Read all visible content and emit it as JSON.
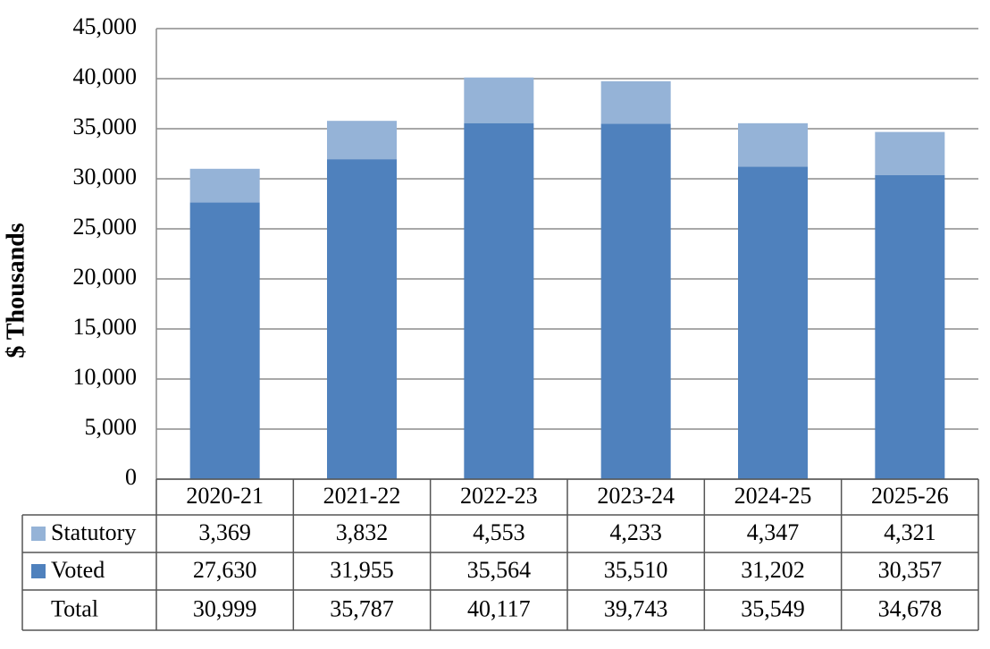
{
  "chart_data": {
    "type": "stacked-bar",
    "y_label": "$ Thousands",
    "categories": [
      "2020-21",
      "2021-22",
      "2022-23",
      "2023-24",
      "2024-25",
      "2025-26"
    ],
    "series": [
      {
        "name": "Statutory",
        "color": "#95b3d7",
        "values": [
          3369,
          3832,
          4553,
          4233,
          4347,
          4321
        ],
        "value_labels": [
          "3,369",
          "3,832",
          "4,553",
          "4,233",
          "4,347",
          "4,321"
        ]
      },
      {
        "name": "Voted",
        "color": "#4f81bd",
        "values": [
          27630,
          31955,
          35564,
          35510,
          31202,
          30357
        ],
        "value_labels": [
          "27,630",
          "31,955",
          "35,564",
          "35,510",
          "31,202",
          "30,357"
        ]
      }
    ],
    "totals": {
      "name": "Total",
      "values": [
        30999,
        35787,
        40117,
        39743,
        35549,
        34678
      ],
      "value_labels": [
        "30,999",
        "35,787",
        "40,117",
        "39,743",
        "35,549",
        "34,678"
      ]
    },
    "ylim": [
      0,
      45000
    ],
    "yticks": [
      0,
      {
        "value": 5000,
        "label": "5,000"
      },
      {
        "value": 10000,
        "label": "10,000"
      },
      {
        "value": 15000,
        "label": "15,000"
      },
      {
        "value": 20000,
        "label": "20,000"
      },
      {
        "value": 25000,
        "label": "25,000"
      },
      {
        "value": 30000,
        "label": "30,000"
      },
      {
        "value": 35000,
        "label": "35,000"
      },
      {
        "value": 40000,
        "label": "40,000"
      },
      {
        "value": 45000,
        "label": "45,000"
      }
    ],
    "grid": true
  }
}
